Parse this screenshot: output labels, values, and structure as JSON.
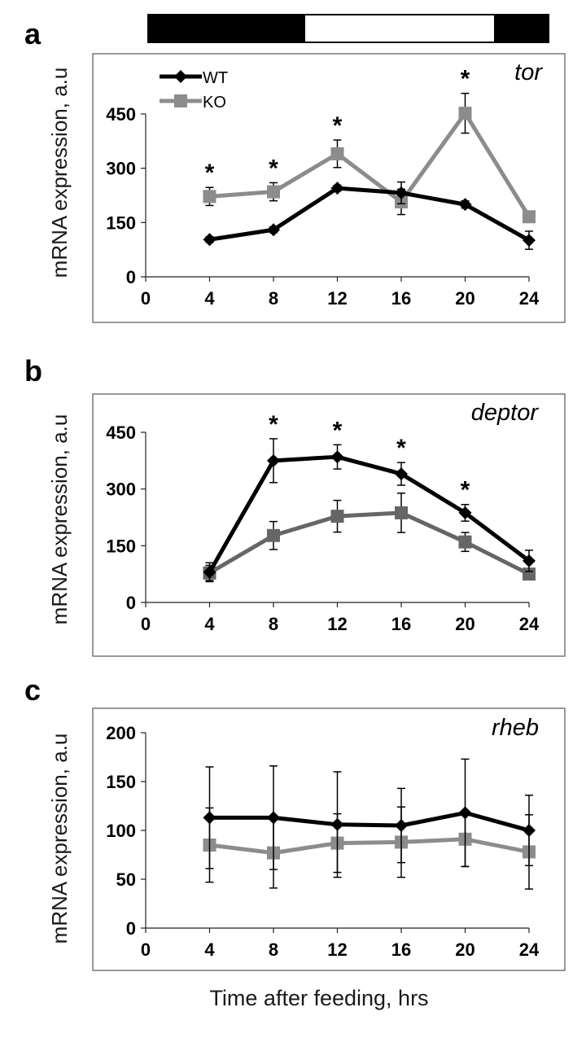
{
  "figure": {
    "xlabel": "Time after feeding, hrs",
    "light_dark_bar": [
      "dark",
      "light",
      "dark"
    ]
  },
  "chart_data": [
    {
      "type": "line",
      "panel_label": "a",
      "gene": "tor",
      "ylabel": "mRNA expression, a.u",
      "x": [
        4,
        8,
        12,
        16,
        20,
        24
      ],
      "xlim": [
        0,
        24
      ],
      "xticks": [
        "0",
        "4",
        "8",
        "12",
        "16",
        "20",
        "24"
      ],
      "ylim": [
        0,
        450
      ],
      "yticks": [
        "0",
        "150",
        "300",
        "450"
      ],
      "legend": {
        "placement": "top-left",
        "entries": [
          "WT",
          "KO"
        ]
      },
      "series": [
        {
          "name": "WT",
          "color": "#000000",
          "marker": "diamond",
          "values": [
            103,
            130,
            245,
            232,
            200,
            101
          ],
          "errors": [
            8,
            8,
            8,
            30,
            10,
            25
          ]
        },
        {
          "name": "KO",
          "color": "#8c8c8c",
          "marker": "square",
          "values": [
            222,
            235,
            340,
            207,
            452,
            166
          ],
          "errors": [
            25,
            25,
            38,
            35,
            55,
            12
          ]
        }
      ],
      "significance": [
        4,
        8,
        12,
        20
      ],
      "significance_symbol": "*"
    },
    {
      "type": "line",
      "panel_label": "b",
      "gene": "deptor",
      "ylabel": "mRNA expression, a.u",
      "x": [
        4,
        8,
        12,
        16,
        20,
        24
      ],
      "xlim": [
        0,
        24
      ],
      "xticks": [
        "0",
        "4",
        "8",
        "12",
        "16",
        "20",
        "24"
      ],
      "ylim": [
        0,
        450
      ],
      "yticks": [
        "0",
        "150",
        "300",
        "450"
      ],
      "series": [
        {
          "name": "WT",
          "color": "#000000",
          "marker": "diamond",
          "values": [
            80,
            375,
            385,
            340,
            237,
            110
          ],
          "errors": [
            25,
            58,
            32,
            30,
            22,
            28
          ]
        },
        {
          "name": "KO",
          "color": "#666666",
          "marker": "square",
          "values": [
            78,
            177,
            228,
            237,
            160,
            75
          ],
          "errors": [
            20,
            37,
            42,
            52,
            25,
            8
          ]
        }
      ],
      "significance": [
        8,
        12,
        16,
        20
      ],
      "significance_symbol": "*"
    },
    {
      "type": "line",
      "panel_label": "c",
      "gene": "rheb",
      "ylabel": "mRNA expression, a.u",
      "x": [
        4,
        8,
        12,
        16,
        20,
        24
      ],
      "xlim": [
        0,
        24
      ],
      "xticks": [
        "0",
        "4",
        "8",
        "12",
        "16",
        "20",
        "24"
      ],
      "ylim": [
        0,
        200
      ],
      "yticks": [
        "0",
        "50",
        "100",
        "150",
        "200"
      ],
      "series": [
        {
          "name": "WT",
          "color": "#000000",
          "marker": "diamond",
          "values": [
            113,
            113,
            106,
            105,
            118,
            100
          ],
          "errors": [
            52,
            53,
            54,
            38,
            55,
            36
          ]
        },
        {
          "name": "KO",
          "color": "#8c8c8c",
          "marker": "square",
          "values": [
            85,
            77,
            87,
            88,
            91,
            78
          ],
          "errors": [
            38,
            36,
            30,
            36,
            28,
            38
          ]
        }
      ],
      "significance": [],
      "significance_symbol": "*"
    }
  ]
}
